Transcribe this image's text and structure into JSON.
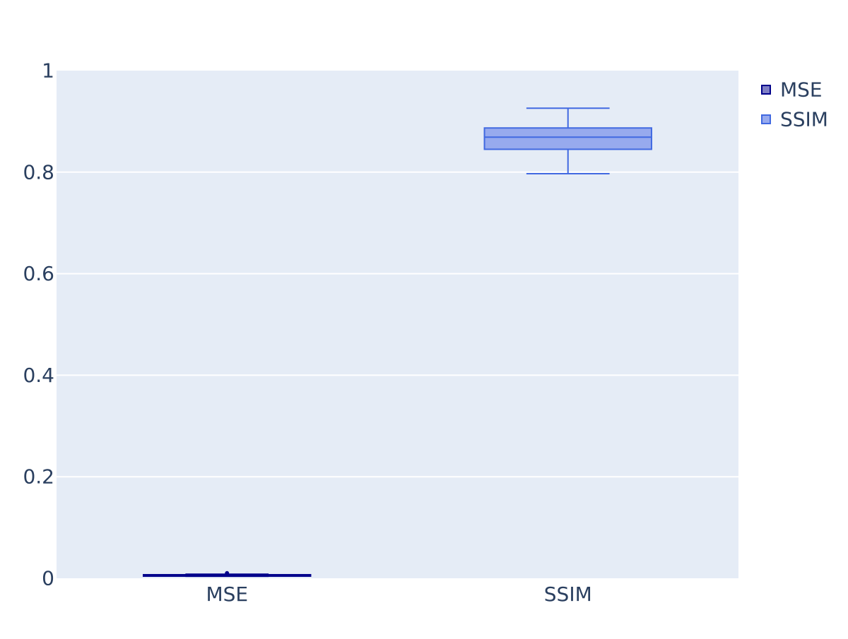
{
  "chart_data": {
    "type": "box",
    "categories": [
      "MSE",
      "SSIM"
    ],
    "ylim": [
      0,
      1
    ],
    "y_ticks": [
      "0",
      "0.2",
      "0.4",
      "0.6",
      "0.8",
      "1"
    ],
    "grid": true,
    "legend_position": "top-right",
    "series": [
      {
        "name": "MSE",
        "category": "MSE",
        "whisker_low": 0.004,
        "q1": 0.005,
        "median": 0.006,
        "q3": 0.007,
        "whisker_high": 0.008,
        "outliers": [
          0.01
        ],
        "color": "#00008b",
        "fill": "#7f7fc5"
      },
      {
        "name": "SSIM",
        "category": "SSIM",
        "whisker_low": 0.797,
        "q1": 0.845,
        "median": 0.869,
        "q3": 0.887,
        "whisker_high": 0.926,
        "outliers": [],
        "color": "#4169e1",
        "fill": "#97aaee"
      }
    ],
    "colors": {
      "plot_bg": "#e5ecf6",
      "grid": "#ffffff",
      "text": "#2a3f5f"
    }
  }
}
